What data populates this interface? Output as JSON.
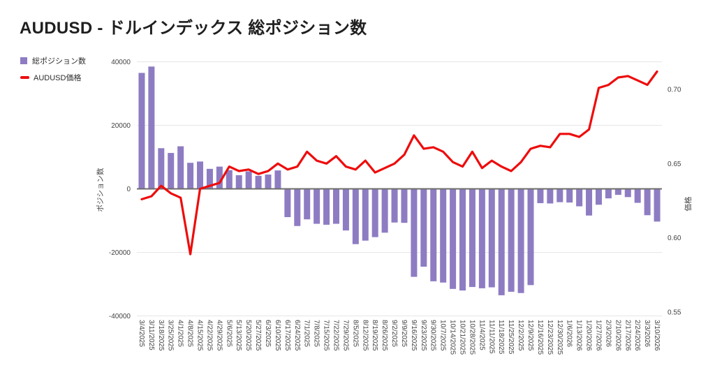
{
  "title": "AUDUSD - ドルインデックス 総ポジション数",
  "legend": {
    "items": [
      {
        "label": "総ポジション数",
        "color": "#8e7cc3",
        "marker": "square"
      },
      {
        "label": "AUDUSD価格",
        "color": "#ee0c0c",
        "marker": "line"
      }
    ]
  },
  "colors": {
    "bar": "#8e7cc3",
    "line": "#ee0c0c",
    "gridline": "#e6e6e6",
    "zero_line": "#6e6e6e",
    "tick_text": "#424242",
    "title_text": "#1f1f1f"
  },
  "chart_data": {
    "type": "bar",
    "subtype": "combo-bar-line-dual-axis",
    "title": "AUDUSD - ドルインデックス 総ポジション数",
    "grid": true,
    "legend_position": "top-left",
    "categories": [
      "3/4/2025",
      "3/11/2025",
      "3/18/2025",
      "3/25/2025",
      "4/1/2025",
      "4/8/2025",
      "4/15/2025",
      "4/22/2025",
      "4/29/2025",
      "5/6/2025",
      "5/13/2025",
      "5/20/2025",
      "5/27/2025",
      "6/3/2025",
      "6/10/2025",
      "6/17/2025",
      "6/24/2025",
      "7/1/2025",
      "7/8/2025",
      "7/15/2025",
      "7/22/2025",
      "7/29/2025",
      "8/5/2025",
      "8/12/2025",
      "8/19/2025",
      "8/26/2025",
      "9/2/2025",
      "9/9/2025",
      "9/16/2025",
      "9/23/2025",
      "9/30/2025",
      "10/7/2025",
      "10/14/2025",
      "10/21/2025",
      "10/28/2025",
      "11/4/2025",
      "11/11/2025",
      "11/18/2025",
      "11/25/2025",
      "12/2/2025",
      "12/9/2025",
      "12/16/2025",
      "12/23/2025",
      "12/30/2025",
      "1/6/2026",
      "1/13/2026",
      "1/20/2026",
      "1/27/2026",
      "2/3/2026",
      "2/10/2026",
      "2/17/2026",
      "2/24/2026",
      "3/3/2026",
      "3/10/2026"
    ],
    "series": [
      {
        "name": "総ポジション数",
        "type": "bar",
        "axis": "left",
        "color": "#8e7cc3",
        "values": [
          36500,
          38500,
          12800,
          11300,
          13400,
          8200,
          8600,
          6300,
          7000,
          5900,
          4300,
          5500,
          4100,
          4500,
          5800,
          -8900,
          -11700,
          -9600,
          -11000,
          -11300,
          -11000,
          -13100,
          -17400,
          -16300,
          -15200,
          -13800,
          -10600,
          -10700,
          -27700,
          -24500,
          -29100,
          -29500,
          -31500,
          -32000,
          -30900,
          -31300,
          -31000,
          -33500,
          -32400,
          -32800,
          -30300,
          -4500,
          -4600,
          -4200,
          -4300,
          -5500,
          -8400,
          -5000,
          -3000,
          -1900,
          -2600,
          -4400,
          -8300,
          -10300
        ]
      },
      {
        "name": "AUDUSD価格",
        "type": "line",
        "axis": "right",
        "color": "#ee0c0c",
        "values": [
          0.626,
          0.628,
          0.635,
          0.63,
          0.627,
          0.589,
          0.633,
          0.635,
          0.637,
          0.648,
          0.645,
          0.646,
          0.643,
          0.645,
          0.65,
          0.646,
          0.648,
          0.658,
          0.652,
          0.65,
          0.655,
          0.648,
          0.646,
          0.652,
          0.644,
          0.647,
          0.65,
          0.656,
          0.669,
          0.66,
          0.661,
          0.658,
          0.651,
          0.648,
          0.658,
          0.647,
          0.652,
          0.648,
          0.645,
          0.651,
          0.66,
          0.662,
          0.661,
          0.67,
          0.67,
          0.668,
          0.673,
          0.701,
          0.703,
          0.708,
          0.709,
          0.706,
          0.703,
          0.712
        ]
      }
    ],
    "left_axis": {
      "title": "ポジション数",
      "ticks": [
        40000,
        20000,
        0,
        -20000,
        -40000
      ],
      "range": [
        -40000,
        40000
      ]
    },
    "right_axis": {
      "title": "価格",
      "ticks": [
        0.7,
        0.65,
        0.6,
        0.55
      ],
      "range": [
        0.547,
        0.719
      ]
    },
    "xlabel": "",
    "ylabel": "ポジション数",
    "y2label": "価格"
  }
}
